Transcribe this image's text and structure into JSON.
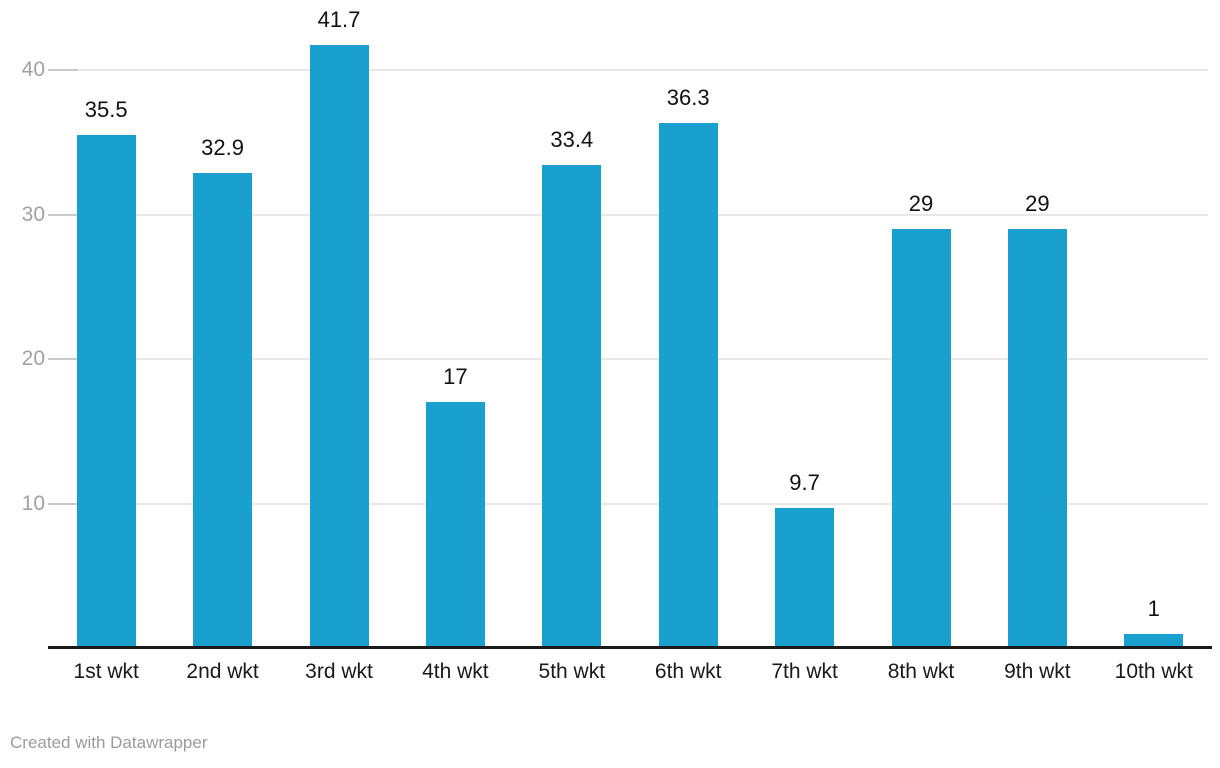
{
  "chart_data": {
    "type": "bar",
    "categories": [
      "1st wkt",
      "2nd wkt",
      "3rd wkt",
      "4th wkt",
      "5th wkt",
      "6th wkt",
      "7th wkt",
      "8th wkt",
      "9th wkt",
      "10th wkt"
    ],
    "values": [
      35.5,
      32.9,
      41.7,
      17,
      33.4,
      36.3,
      9.7,
      29,
      29,
      1
    ],
    "value_labels": [
      "35.5",
      "32.9",
      "41.7",
      "17",
      "33.4",
      "36.3",
      "9.7",
      "29",
      "29",
      "1"
    ],
    "title": "",
    "xlabel": "",
    "ylabel": "",
    "ylim": [
      0,
      44.8
    ],
    "yticks": [
      10,
      20,
      30,
      40
    ],
    "grid": true,
    "legend": false,
    "colors": {
      "bar": "#1AA0CE",
      "axis": "#1a1a1a",
      "gridline": "#e8e8e8",
      "tick": "#c9c9c9",
      "ytick_label": "#a2a2a2",
      "value_label": "#111111",
      "xtick_label": "#1a1a1a"
    }
  },
  "footer": {
    "credit": "Created with Datawrapper"
  }
}
